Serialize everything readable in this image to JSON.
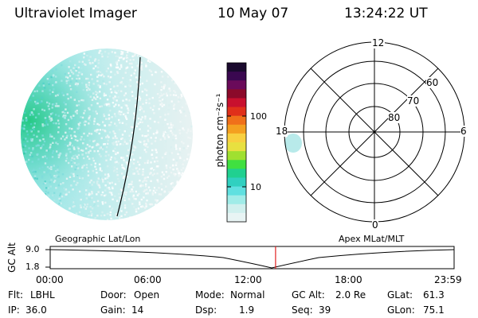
{
  "header": {
    "title": "Ultraviolet Imager",
    "date": "10 May 07",
    "time": "13:24:22 UT"
  },
  "geographic_panel": {
    "label": "Geographic Lat/Lon"
  },
  "polar_panel": {
    "label": "Apex MLat/MLT",
    "mlt_labels": [
      "12",
      "6",
      "0",
      "18"
    ],
    "lat_labels": [
      "60",
      "70",
      "80"
    ]
  },
  "colorbar": {
    "unit_label": "photon cm⁻²s⁻¹",
    "tick_labels": [
      "100",
      "10"
    ],
    "colors": [
      "#1a0a2e",
      "#3a0850",
      "#6a0a5a",
      "#8b0a2a",
      "#c8102e",
      "#e0301a",
      "#f0701a",
      "#f4a020",
      "#f8d040",
      "#e8e040",
      "#a0e030",
      "#40e040",
      "#20d090",
      "#30d0c0",
      "#60e0e0",
      "#a0ece8",
      "#d0f0ee",
      "#e8f4f4"
    ]
  },
  "altitude_strip": {
    "axis_label": "GC Alt",
    "y_labels": [
      "9.0",
      "1.8"
    ],
    "time_labels": [
      "00:00",
      "06:00",
      "12:00",
      "18:00",
      "23:59"
    ],
    "current_time_fraction": 0.558
  },
  "info": {
    "flt_label": "Flt:",
    "flt_value": "LBHL",
    "ip_label": "IP:",
    "ip_value": "36.0",
    "door_label": "Door:",
    "door_value": "Open",
    "gain_label": "Gain:",
    "gain_value": "14",
    "mode_label": "Mode:",
    "mode_value": "Normal",
    "dsp_label": "Dsp:",
    "dsp_value": "1.9",
    "gcalt_label": "GC Alt:",
    "gcalt_value": "2.0 Re",
    "seq_label": "Seq:",
    "seq_value": "39",
    "glat_label": "GLat:",
    "glat_value": "61.3",
    "glon_label": "GLon:",
    "glon_value": "75.1"
  }
}
